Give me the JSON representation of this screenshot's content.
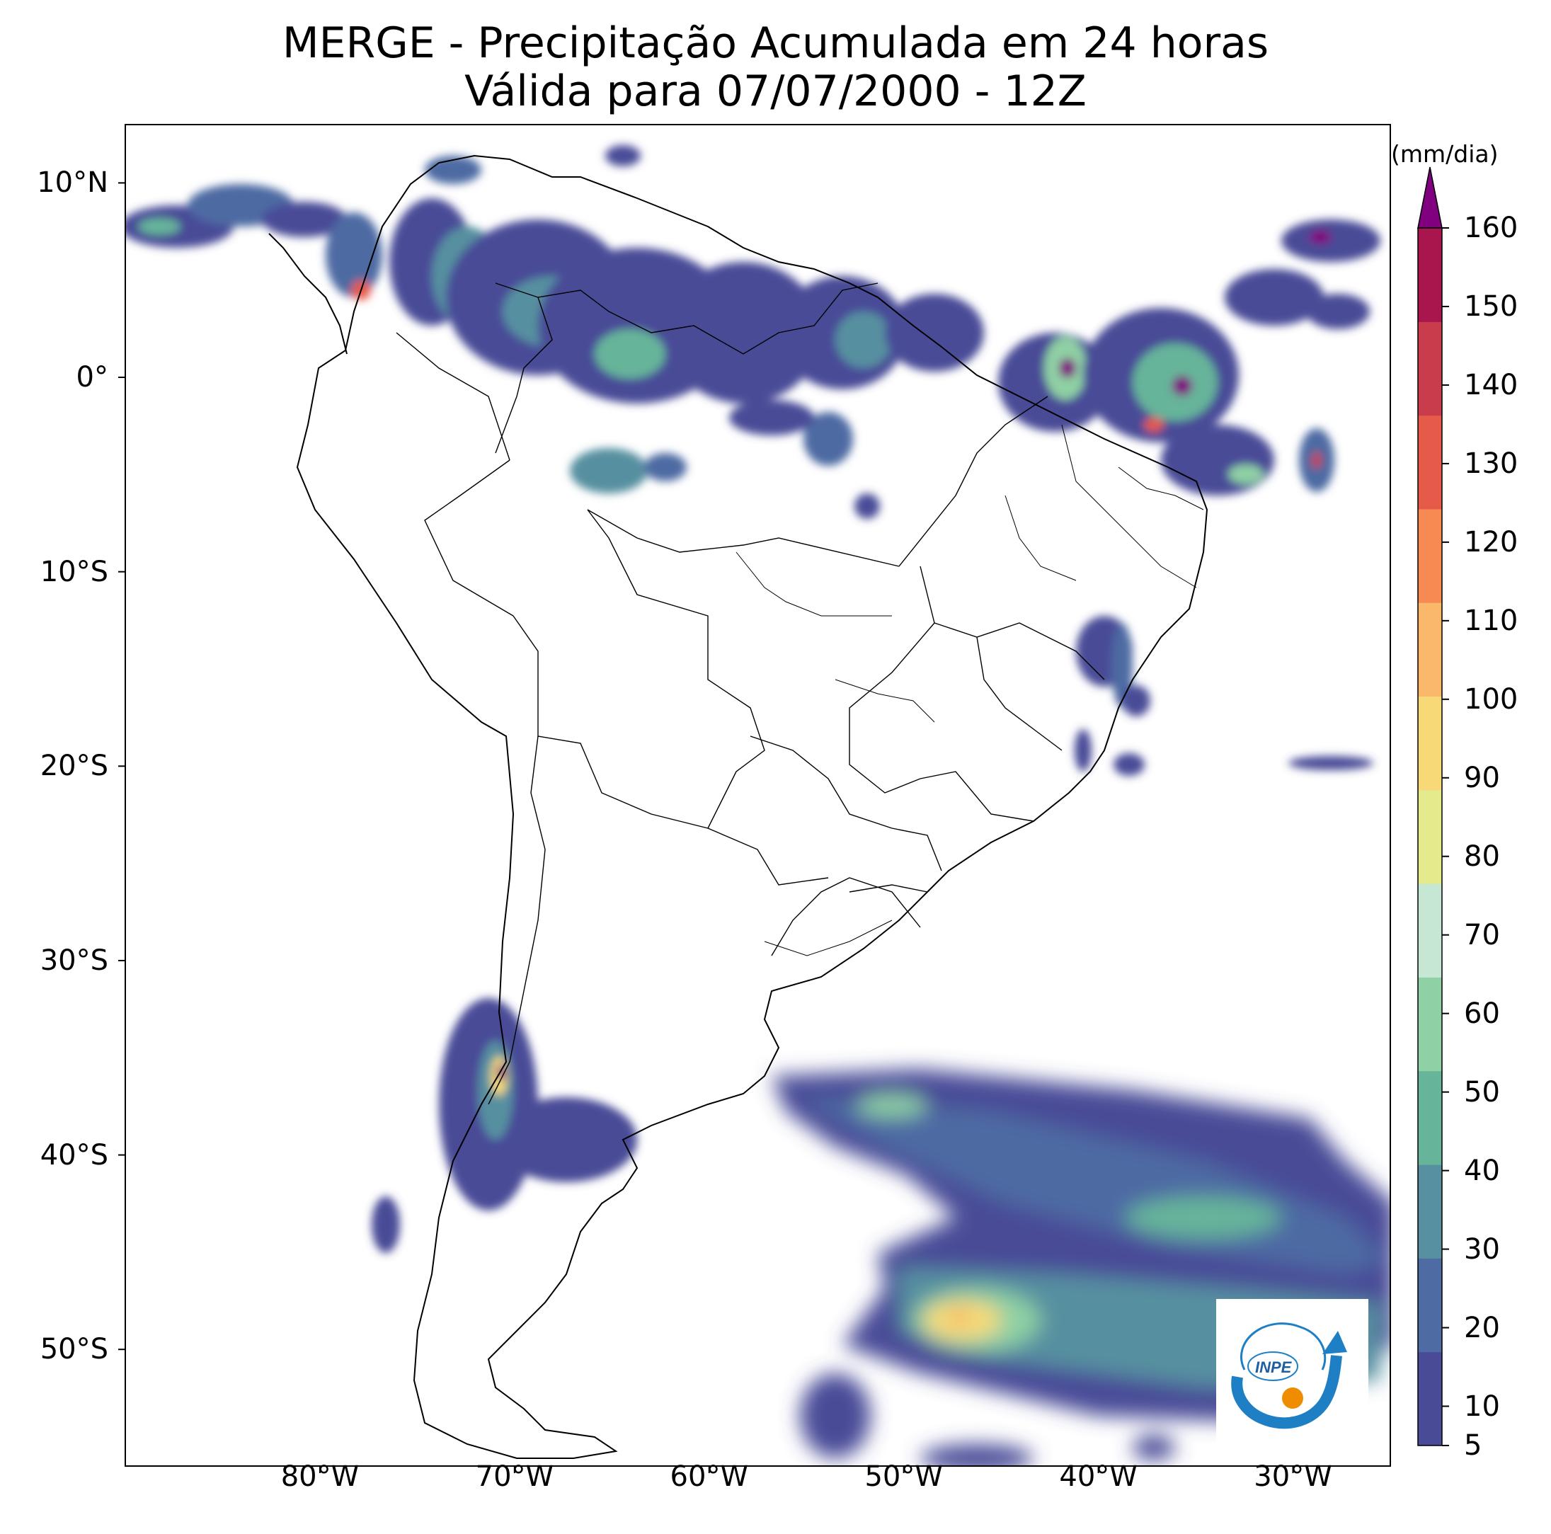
{
  "title": {
    "line1": "MERGE - Precipitação Acumulada em 24 horas",
    "line2": "Válida para 07/07/2000 - 12Z"
  },
  "map": {
    "lon_range": [
      -90,
      -25
    ],
    "lat_range": [
      -56,
      13
    ],
    "lat_ticks": [
      {
        "value": 10,
        "label": "10°N"
      },
      {
        "value": 0,
        "label": "0°"
      },
      {
        "value": -10,
        "label": "10°S"
      },
      {
        "value": -20,
        "label": "20°S"
      },
      {
        "value": -30,
        "label": "30°S"
      },
      {
        "value": -40,
        "label": "40°S"
      },
      {
        "value": -50,
        "label": "50°S"
      }
    ],
    "lon_ticks": [
      {
        "value": -80,
        "label": "80°W"
      },
      {
        "value": -70,
        "label": "70°W"
      },
      {
        "value": -60,
        "label": "60°W"
      },
      {
        "value": -50,
        "label": "50°W"
      },
      {
        "value": -40,
        "label": "40°W"
      },
      {
        "value": -30,
        "label": "30°W"
      }
    ]
  },
  "colorbar": {
    "unit": "(mm/dia)",
    "min": 5,
    "max": 160,
    "extend": "max",
    "ticks": [
      5,
      10,
      20,
      30,
      40,
      50,
      60,
      70,
      80,
      90,
      100,
      110,
      120,
      130,
      140,
      150,
      160
    ],
    "colors": [
      "#4a4b97",
      "#4e6ba3",
      "#5790a0",
      "#66b49a",
      "#8fd0a4",
      "#c6e7d4",
      "#e4eb8c",
      "#f7da77",
      "#f9b86a",
      "#f58a52",
      "#e65a49",
      "#c83c4b",
      "#a8164d",
      "#800080"
    ]
  },
  "logo": {
    "text": "INPE",
    "colors": {
      "swoosh": "#1f7fc4",
      "dot": "#f08c00"
    }
  }
}
